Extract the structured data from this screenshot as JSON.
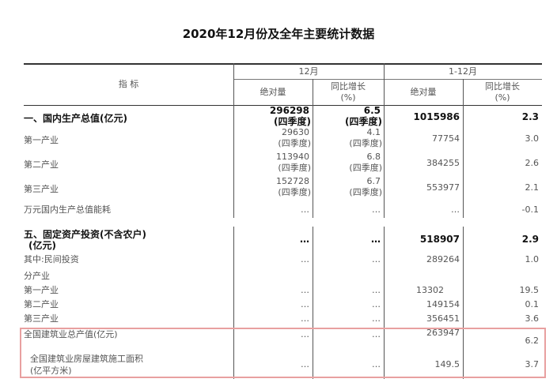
{
  "title": "2020年12月份及全年主要统计数据",
  "header": {
    "indicator": "指 标",
    "dec": "12月",
    "ytd": "1-12月",
    "abs": "绝对量",
    "yoy": "同比增长",
    "pct": "(%)"
  },
  "q4": "(四季度)",
  "rows": [
    {
      "label": "一、国内生产总值(亿元)",
      "dec_abs": "296298",
      "dec_yoy": "6.5",
      "ytd_abs": "1015986",
      "ytd_yoy": "2.3"
    },
    {
      "label": "第一产业",
      "dec_abs": "29630",
      "dec_yoy": "4.1",
      "ytd_abs": "77754",
      "ytd_yoy": "3.0"
    },
    {
      "label": "第二产业",
      "dec_abs": "113940",
      "dec_yoy": "6.8",
      "ytd_abs": "384255",
      "ytd_yoy": "2.6"
    },
    {
      "label": "第三产业",
      "dec_abs": "152728",
      "dec_yoy": "6.7",
      "ytd_abs": "553977",
      "ytd_yoy": "2.1"
    },
    {
      "label": "万元国内生产总值能耗",
      "dec_abs": "…",
      "dec_yoy": "…",
      "ytd_abs": "…",
      "ytd_yoy": "-0.1"
    },
    {
      "label": "五、固定资产投资(不含农户)",
      "label2": "(亿元)",
      "dec_abs": "…",
      "dec_yoy": "…",
      "ytd_abs": "518907",
      "ytd_yoy": "2.9"
    },
    {
      "label": "其中:民间投资",
      "dec_abs": "…",
      "dec_yoy": "…",
      "ytd_abs": "289264",
      "ytd_yoy": "1.0"
    },
    {
      "label": "分产业"
    },
    {
      "label": "第一产业",
      "dec_abs": "…",
      "dec_yoy": "…",
      "ytd_abs": "13302",
      "ytd_yoy": "19.5"
    },
    {
      "label": "第二产业",
      "dec_abs": "…",
      "dec_yoy": "…",
      "ytd_abs": "149154",
      "ytd_yoy": "0.1"
    },
    {
      "label": "第三产业",
      "dec_abs": "…",
      "dec_yoy": "…",
      "ytd_abs": "356451",
      "ytd_yoy": "3.6"
    },
    {
      "label": "全国建筑业总产值(亿元)",
      "dec_abs": "…",
      "dec_yoy": "…",
      "ytd_abs": "263947",
      "ytd_yoy": "6.2"
    },
    {
      "label": "全国建筑业房屋建筑施工面积",
      "label2": "(亿平方米)",
      "dec_abs": "…",
      "dec_yoy": "…",
      "ytd_abs": "149.5",
      "ytd_yoy": "3.7"
    }
  ],
  "highlight_color": "#e8a0a0"
}
